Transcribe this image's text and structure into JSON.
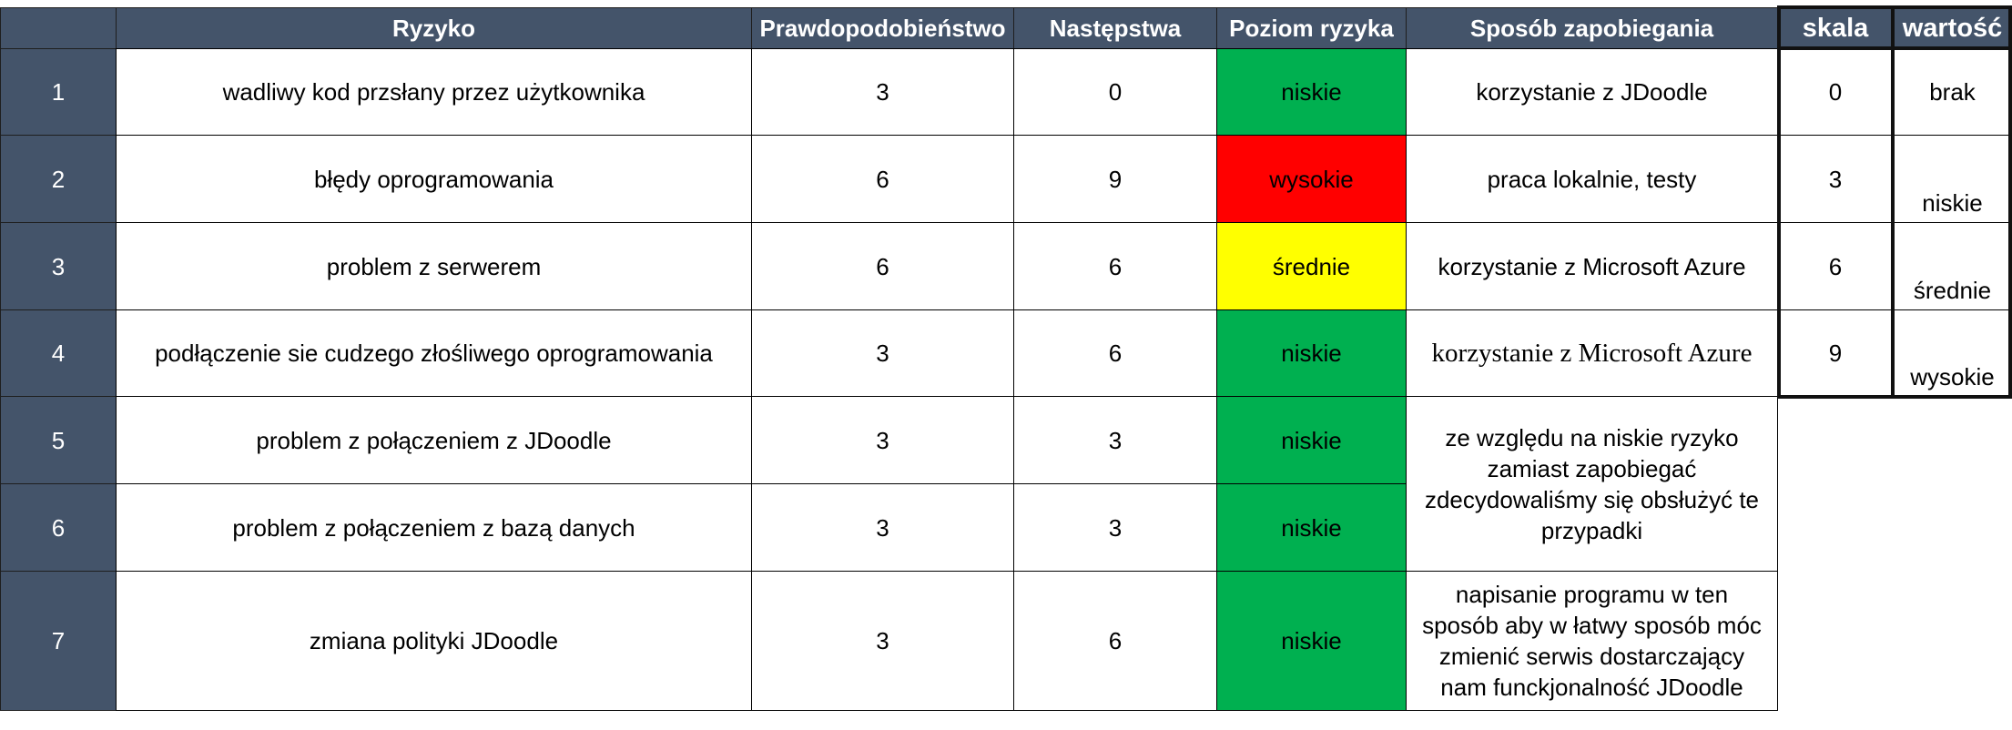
{
  "headers": [
    "Ryzyko",
    "Prawdopodobieństwo",
    "Następstwa",
    "Poziom ryzyka",
    "Sposób zapobiegania"
  ],
  "rows": [
    {
      "no": "1",
      "risk": "wadliwy kod przsłany przez użytkownika",
      "probability": "3",
      "consequences": "0",
      "level": "niskie",
      "prevention": "korzystanie z JDoodle"
    },
    {
      "no": "2",
      "risk": "błędy oprogramowania",
      "probability": "6",
      "consequences": "9",
      "level": "wysokie",
      "prevention": "praca lokalnie, testy"
    },
    {
      "no": "3",
      "risk": "problem z serwerem",
      "probability": "6",
      "consequences": "6",
      "level": "średnie",
      "prevention": "korzystanie z Microsoft Azure"
    },
    {
      "no": "4",
      "risk": "podłączenie sie cudzego złośliwego oprogramowania",
      "probability": "3",
      "consequences": "6",
      "level": "niskie",
      "prevention": "korzystanie z Microsoft Azure"
    },
    {
      "no": "5",
      "risk": "problem z połączeniem z JDoodle",
      "probability": "3",
      "consequences": "3",
      "level": "niskie"
    },
    {
      "no": "6",
      "risk": "problem z połączeniem z bazą danych",
      "probability": "3",
      "consequences": "3",
      "level": "niskie"
    },
    {
      "no": "7",
      "risk": "zmiana polityki JDoodle",
      "probability": "3",
      "consequences": "6",
      "level": "niskie",
      "prevention": "napisanie programu w ten sposób aby w łatwy sposób móc zmienić serwis dostarczający nam funckjonalność JDoodle"
    }
  ],
  "prevention_merged_5_6": "ze względu na niskie ryzyko zamiast zapobiegać zdecydowaliśmy się obsłużyć te przypadki",
  "legend": {
    "headers": [
      "skala",
      "wartość"
    ],
    "rows": [
      {
        "scale": "0",
        "value": "brak"
      },
      {
        "scale": "3",
        "value": "niskie"
      },
      {
        "scale": "6",
        "value": "średnie"
      },
      {
        "scale": "9",
        "value": "wysokie"
      }
    ]
  },
  "colors": {
    "header": "#44546a",
    "low": "#00b050",
    "medium": "#ffff00",
    "high": "#ff0000"
  }
}
